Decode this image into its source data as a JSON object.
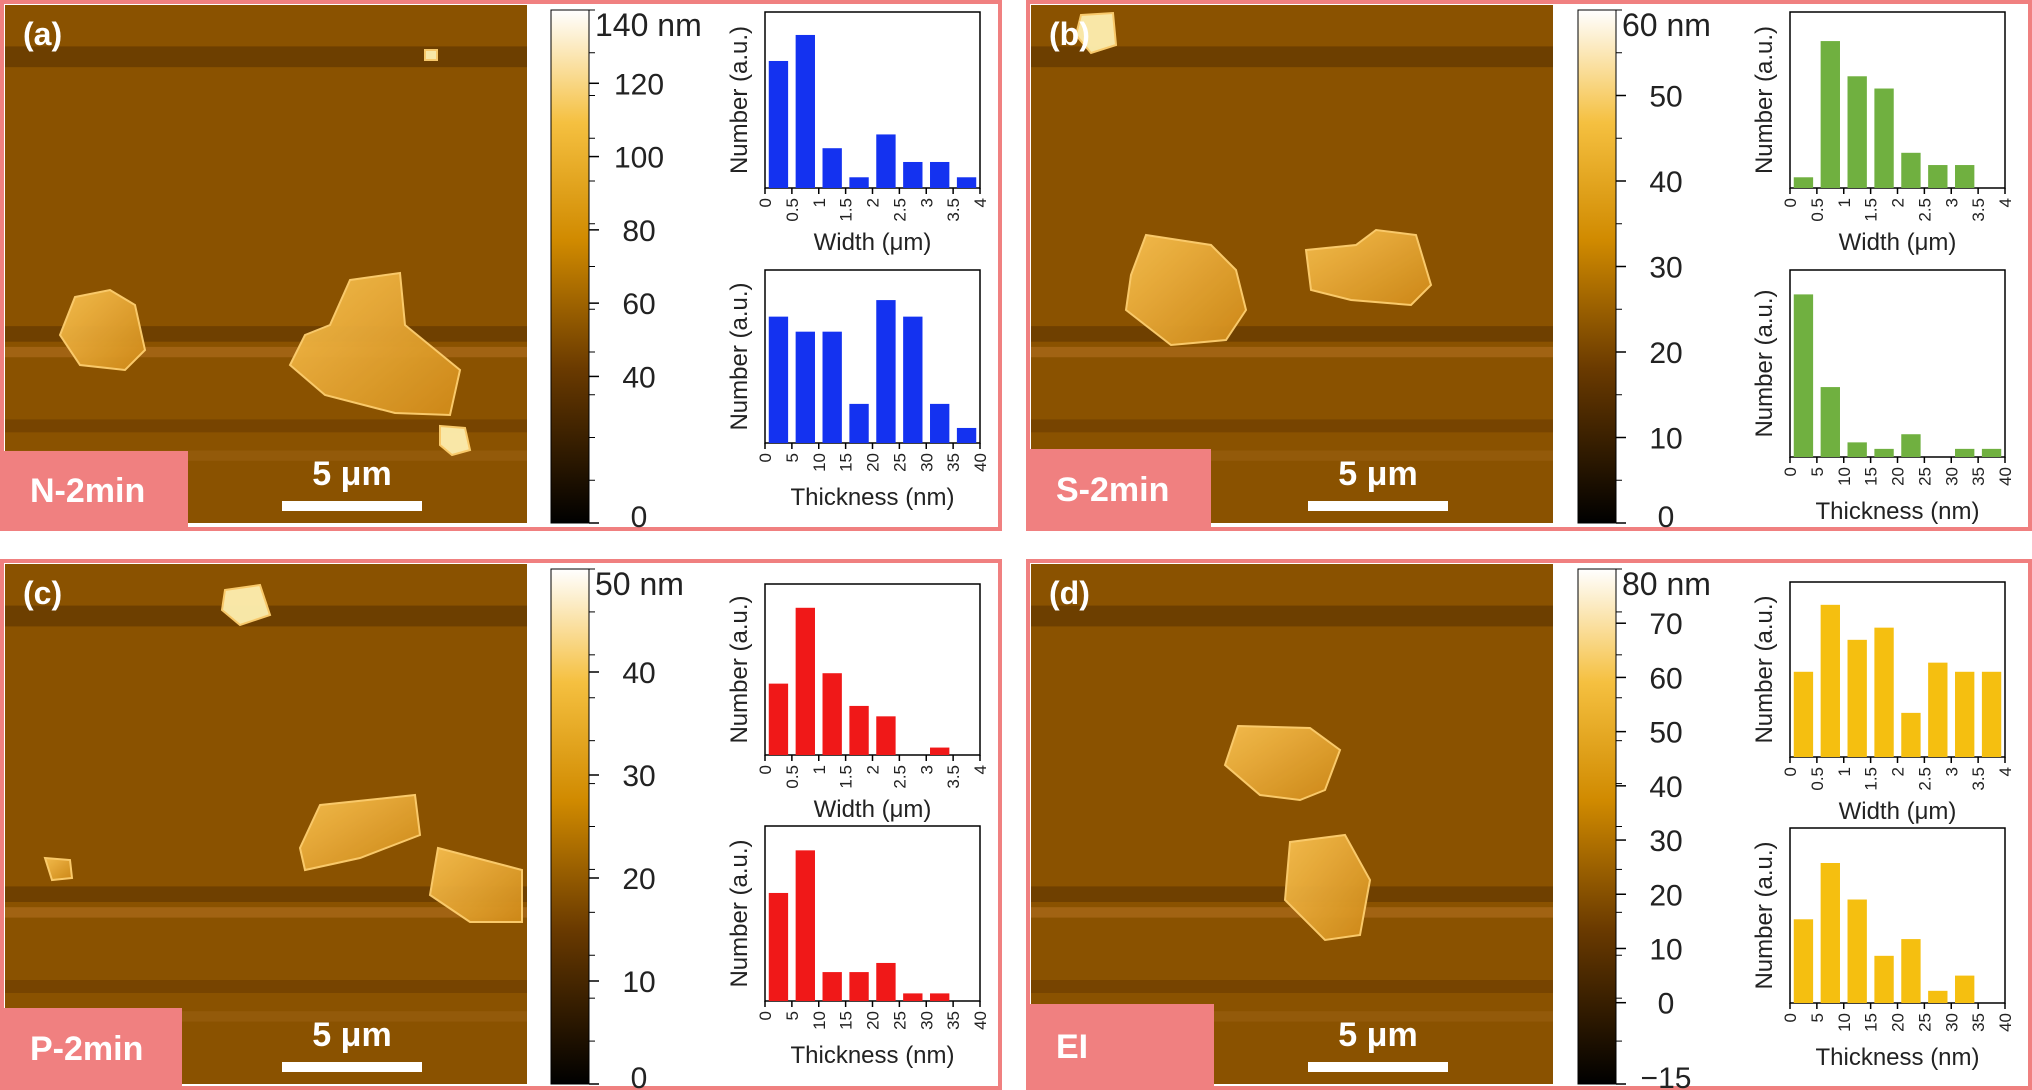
{
  "colors": {
    "frame": "#f08080",
    "tag_bg": "#f08080",
    "afm_base": "#8a5200",
    "blue": "#1432f0",
    "green": "#70b040",
    "red": "#f01818",
    "yellow": "#f5bf10"
  },
  "panels": [
    {
      "label": "(a)",
      "sample": "N-2min",
      "scalebar": "5 μm",
      "colorbar": {
        "unit_label": "140 nm",
        "ticks": [
          "120",
          "100",
          "80",
          "60",
          "40",
          "0"
        ],
        "min": 0,
        "max": 140,
        "tick_values": [
          120,
          100,
          80,
          60,
          40,
          0
        ]
      },
      "flakes": [
        "flake-1",
        "flake-2",
        "flake-3",
        "flake-4"
      ]
    },
    {
      "label": "(b)",
      "sample": "S-2min",
      "scalebar": "5 μm",
      "colorbar": {
        "unit_label": "60 nm",
        "ticks": [
          "50",
          "40",
          "30",
          "20",
          "10",
          "0"
        ],
        "min": 0,
        "max": 60,
        "tick_values": [
          50,
          40,
          30,
          20,
          10,
          0
        ]
      },
      "flakes": [
        "flake-1",
        "flake-2",
        "flake-3"
      ]
    },
    {
      "label": "(c)",
      "sample": "P-2min",
      "scalebar": "5 μm",
      "colorbar": {
        "unit_label": "50 nm",
        "ticks": [
          "40",
          "30",
          "20",
          "10",
          "0"
        ],
        "min": 0,
        "max": 50,
        "tick_values": [
          40,
          30,
          20,
          10,
          0
        ]
      },
      "flakes": [
        "flake-1",
        "flake-2",
        "flake-3",
        "flake-4"
      ]
    },
    {
      "label": "(d)",
      "sample": "EI",
      "scalebar": "5 μm",
      "colorbar": {
        "unit_label": "80 nm",
        "ticks": [
          "70",
          "60",
          "50",
          "40",
          "30",
          "20",
          "10",
          "0",
          "−15"
        ],
        "min": -15,
        "max": 80,
        "tick_values": [
          70,
          60,
          50,
          40,
          30,
          20,
          10,
          0,
          -15
        ]
      },
      "flakes": [
        "flake-1",
        "flake-2"
      ]
    }
  ],
  "chart_data": [
    {
      "panel": "(a)",
      "type": "bar",
      "color": "blue",
      "xlabel": "Width (μm)",
      "ylabel": "Number (a.u.)",
      "xlim": [
        0,
        4
      ],
      "xticks": [
        "0",
        "0.5",
        "1",
        "1.5",
        "2",
        "2.5",
        "3",
        "3.5",
        "4"
      ],
      "x": [
        0.25,
        0.75,
        1.25,
        1.75,
        2.25,
        2.75,
        3.25,
        3.75
      ],
      "values": [
        0.83,
        1.0,
        0.26,
        0.07,
        0.35,
        0.17,
        0.17,
        0.07
      ],
      "ylim": [
        0,
        1.15
      ]
    },
    {
      "panel": "(a)",
      "type": "bar",
      "color": "blue",
      "xlabel": "Thickness (nm)",
      "ylabel": "Number (a.u.)",
      "xlim": [
        0,
        40
      ],
      "xticks": [
        "0",
        "5",
        "10",
        "15",
        "20",
        "25",
        "30",
        "35",
        "40"
      ],
      "x": [
        2.5,
        7.5,
        12.5,
        17.5,
        22.5,
        27.5,
        32.5,
        37.5
      ],
      "values": [
        0.84,
        0.74,
        0.74,
        0.26,
        0.95,
        0.84,
        0.26,
        0.1
      ],
      "ylim": [
        0,
        1.15
      ]
    },
    {
      "panel": "(b)",
      "type": "bar",
      "color": "green",
      "xlabel": "Width (μm)",
      "ylabel": "Number (a.u.)",
      "xlim": [
        0,
        4
      ],
      "xticks": [
        "0",
        "0.5",
        "1",
        "1.5",
        "2",
        "2.5",
        "3",
        "3.5",
        "4"
      ],
      "x": [
        0.25,
        0.75,
        1.25,
        1.75,
        2.25,
        2.75,
        3.25
      ],
      "values": [
        0.07,
        0.96,
        0.73,
        0.65,
        0.23,
        0.15,
        0.15
      ],
      "ylim": [
        0,
        1.15
      ]
    },
    {
      "panel": "(b)",
      "type": "bar",
      "color": "green",
      "xlabel": "Thickness (nm)",
      "ylabel": "Number (a.u.)",
      "xlim": [
        0,
        40
      ],
      "xticks": [
        "0",
        "5",
        "10",
        "15",
        "20",
        "25",
        "30",
        "35",
        "40"
      ],
      "x": [
        2.5,
        7.5,
        12.5,
        17.5,
        22.5,
        27.5,
        32.5,
        37.5
      ],
      "values": [
        1.0,
        0.43,
        0.09,
        0.05,
        0.14,
        0.0,
        0.05,
        0.05
      ],
      "ylim": [
        0,
        1.15
      ]
    },
    {
      "panel": "(c)",
      "type": "bar",
      "color": "red",
      "xlabel": "Width (μm)",
      "ylabel": "Number (a.u.)",
      "xlim": [
        0,
        4
      ],
      "xticks": [
        "0",
        "0.5",
        "1",
        "1.5",
        "2",
        "2.5",
        "3",
        "3.5",
        "4"
      ],
      "x": [
        0.25,
        0.75,
        1.25,
        1.75,
        2.25,
        2.75,
        3.25
      ],
      "values": [
        0.48,
        0.99,
        0.55,
        0.33,
        0.26,
        0.0,
        0.05
      ],
      "ylim": [
        0,
        1.15
      ]
    },
    {
      "panel": "(c)",
      "type": "bar",
      "color": "red",
      "xlabel": "Thickness (nm)",
      "ylabel": "Number (a.u.)",
      "xlim": [
        0,
        40
      ],
      "xticks": [
        "0",
        "5",
        "10",
        "15",
        "20",
        "25",
        "30",
        "35",
        "40"
      ],
      "x": [
        2.5,
        7.5,
        12.5,
        17.5,
        22.5,
        27.5,
        32.5
      ],
      "values": [
        0.71,
        0.99,
        0.19,
        0.19,
        0.25,
        0.05,
        0.05
      ],
      "ylim": [
        0,
        1.15
      ]
    },
    {
      "panel": "(d)",
      "type": "bar",
      "color": "yellow",
      "xlabel": "Width (μm)",
      "ylabel": "Number (a.u.)",
      "xlim": [
        0,
        4
      ],
      "xticks": [
        "0",
        "0.5",
        "1",
        "1.5",
        "2",
        "2.5",
        "3",
        "3.5",
        "4"
      ],
      "x": [
        0.25,
        0.75,
        1.25,
        1.75,
        2.25,
        2.75,
        3.25,
        3.75
      ],
      "values": [
        0.56,
        1.0,
        0.77,
        0.85,
        0.29,
        0.62,
        0.56,
        0.56
      ],
      "ylim": [
        0,
        1.15
      ]
    },
    {
      "panel": "(d)",
      "type": "bar",
      "color": "yellow",
      "xlabel": "Thickness (nm)",
      "ylabel": "Number (a.u.)",
      "xlim": [
        0,
        40
      ],
      "xticks": [
        "0",
        "5",
        "10",
        "15",
        "20",
        "25",
        "30",
        "35",
        "40"
      ],
      "x": [
        2.5,
        7.5,
        12.5,
        17.5,
        22.5,
        27.5,
        32.5
      ],
      "values": [
        0.55,
        0.92,
        0.68,
        0.31,
        0.42,
        0.08,
        0.18
      ],
      "ylim": [
        0,
        1.15
      ]
    }
  ]
}
